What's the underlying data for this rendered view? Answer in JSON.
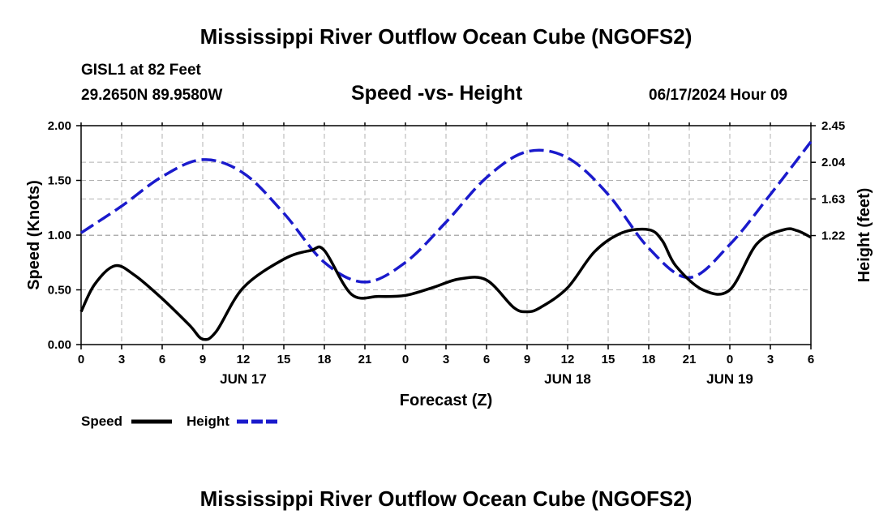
{
  "header": {
    "title": "Mississippi River Outflow Ocean Cube (NGOFS2)",
    "station": "GISL1 at 82 Feet",
    "coords": "29.2650N  89.9580W",
    "date": "06/17/2024 Hour 09",
    "footer_title": "Mississippi River Outflow Ocean Cube (NGOFS2)"
  },
  "colors": {
    "speed": "#000000",
    "height": "#1a1acc",
    "grid": "#b0b0b0"
  },
  "chart_data": {
    "type": "line",
    "title": "Speed -vs- Height",
    "xlabel": "Forecast (Z)",
    "ylabel": "Speed (Knots)",
    "y2label": "Height (feet)",
    "x_unit": "hours since 2024-06-17 00Z",
    "xlim": [
      0,
      54
    ],
    "ylim": [
      0,
      2.0
    ],
    "y2lim": [
      0,
      2.45
    ],
    "yticks": [
      {
        "value": 0.0,
        "label": "0.00"
      },
      {
        "value": 0.5,
        "label": "0.50"
      },
      {
        "value": 1.0,
        "label": "1.00"
      },
      {
        "value": 1.5,
        "label": "1.50"
      },
      {
        "value": 2.0,
        "label": "2.00"
      }
    ],
    "y2ticks": [
      {
        "value": 1.22,
        "label": "1.22"
      },
      {
        "value": 1.63,
        "label": "1.63"
      },
      {
        "value": 2.04,
        "label": "2.04"
      },
      {
        "value": 2.45,
        "label": "2.45"
      }
    ],
    "xticks": [
      {
        "value": 0,
        "label": "0"
      },
      {
        "value": 3,
        "label": "3"
      },
      {
        "value": 6,
        "label": "6"
      },
      {
        "value": 9,
        "label": "9"
      },
      {
        "value": 12,
        "label": "12"
      },
      {
        "value": 15,
        "label": "15"
      },
      {
        "value": 18,
        "label": "18"
      },
      {
        "value": 21,
        "label": "21"
      },
      {
        "value": 24,
        "label": "0"
      },
      {
        "value": 27,
        "label": "3"
      },
      {
        "value": 30,
        "label": "6"
      },
      {
        "value": 33,
        "label": "9"
      },
      {
        "value": 36,
        "label": "12"
      },
      {
        "value": 39,
        "label": "15"
      },
      {
        "value": 42,
        "label": "18"
      },
      {
        "value": 45,
        "label": "21"
      },
      {
        "value": 48,
        "label": "0"
      },
      {
        "value": 51,
        "label": "3"
      },
      {
        "value": 54,
        "label": "6"
      }
    ],
    "day_labels": [
      {
        "value": 12,
        "label": "JUN 17"
      },
      {
        "value": 36,
        "label": "JUN 18"
      },
      {
        "value": 48,
        "label": "JUN 19"
      }
    ],
    "series": [
      {
        "name": "Speed",
        "axis": "left",
        "style": "solid",
        "x": [
          0,
          1,
          2.5,
          4,
          6,
          8,
          9,
          10,
          12,
          15,
          17,
          18,
          20,
          22,
          24,
          26,
          28,
          30,
          32,
          33,
          34,
          36,
          38,
          40,
          42,
          43,
          44,
          46,
          48,
          50,
          52,
          53,
          54
        ],
        "values": [
          0.3,
          0.55,
          0.72,
          0.63,
          0.42,
          0.18,
          0.05,
          0.12,
          0.52,
          0.78,
          0.86,
          0.86,
          0.46,
          0.44,
          0.45,
          0.52,
          0.6,
          0.59,
          0.34,
          0.3,
          0.34,
          0.52,
          0.85,
          1.02,
          1.05,
          0.95,
          0.72,
          0.5,
          0.5,
          0.92,
          1.05,
          1.04,
          0.98
        ]
      },
      {
        "name": "Height",
        "axis": "right",
        "style": "dashed",
        "x": [
          0,
          3,
          6,
          9,
          12,
          15,
          18,
          21,
          24,
          27,
          30,
          33,
          36,
          39,
          42,
          45,
          48,
          51,
          54
        ],
        "values": [
          1.25,
          1.55,
          1.88,
          2.07,
          1.92,
          1.47,
          0.92,
          0.7,
          0.92,
          1.37,
          1.87,
          2.16,
          2.09,
          1.68,
          1.08,
          0.75,
          1.12,
          1.68,
          2.27
        ]
      }
    ],
    "legend": [
      {
        "name": "Speed",
        "style": "solid"
      },
      {
        "name": "Height",
        "style": "dashed"
      }
    ],
    "legend_position": "bottom-left"
  }
}
